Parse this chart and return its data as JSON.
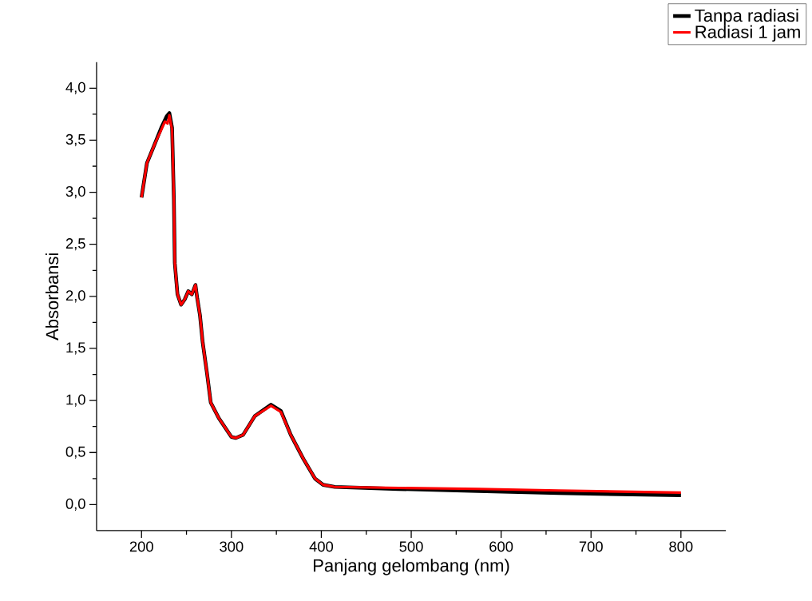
{
  "chart_data": {
    "type": "line",
    "xlabel": "Panjang gelombang (nm)",
    "ylabel": "Absorbansi",
    "xlim": [
      150,
      850
    ],
    "ylim": [
      -0.25,
      4.25
    ],
    "xticks": [
      200,
      300,
      400,
      500,
      600,
      700,
      800
    ],
    "yticks": [
      {
        "value": 0,
        "label": "0,0"
      },
      {
        "value": 0.5,
        "label": "0,5"
      },
      {
        "value": 1,
        "label": "1,0"
      },
      {
        "value": 1.5,
        "label": "1,5"
      },
      {
        "value": 2,
        "label": "2,0"
      },
      {
        "value": 2.5,
        "label": "2,5"
      },
      {
        "value": 3,
        "label": "3,0"
      },
      {
        "value": 3.5,
        "label": "3,5"
      },
      {
        "value": 4,
        "label": "4,0"
      }
    ],
    "legend": "top right",
    "grid": false,
    "marker": "none",
    "line_style": "solid",
    "series": [
      {
        "name": "Tanpa radiasi",
        "color": "#000000",
        "x": [
          200,
          206,
          215,
          222,
          228,
          231,
          234,
          236,
          237,
          240,
          244,
          248,
          252,
          256,
          260,
          262,
          265,
          268,
          273,
          277,
          286,
          300,
          305,
          313,
          326,
          344,
          355,
          366,
          380,
          393,
          402,
          415,
          486,
          575,
          664,
          800
        ],
        "values": [
          2.95,
          3.28,
          3.47,
          3.62,
          3.73,
          3.76,
          3.62,
          2.93,
          2.32,
          2.02,
          1.92,
          1.97,
          2.05,
          2.02,
          2.11,
          1.98,
          1.82,
          1.56,
          1.25,
          0.98,
          0.83,
          0.65,
          0.64,
          0.67,
          0.85,
          0.96,
          0.9,
          0.67,
          0.44,
          0.25,
          0.19,
          0.17,
          0.15,
          0.13,
          0.11,
          0.09
        ]
      },
      {
        "name": "Radiasi 1 jam",
        "color": "#ff0000",
        "x": [
          200,
          206,
          215,
          222,
          226,
          229,
          231,
          234,
          236,
          237,
          240,
          244,
          248,
          252,
          256,
          260,
          262,
          265,
          268,
          273,
          277,
          286,
          300,
          305,
          313,
          326,
          344,
          355,
          366,
          380,
          393,
          402,
          415,
          486,
          575,
          664,
          800
        ],
        "values": [
          2.95,
          3.28,
          3.47,
          3.6,
          3.68,
          3.66,
          3.74,
          3.6,
          2.93,
          2.32,
          2.02,
          1.92,
          1.97,
          2.05,
          2.02,
          2.11,
          1.98,
          1.82,
          1.56,
          1.25,
          0.98,
          0.83,
          0.65,
          0.64,
          0.67,
          0.85,
          0.95,
          0.89,
          0.67,
          0.44,
          0.25,
          0.19,
          0.17,
          0.16,
          0.15,
          0.135,
          0.115
        ]
      }
    ]
  }
}
